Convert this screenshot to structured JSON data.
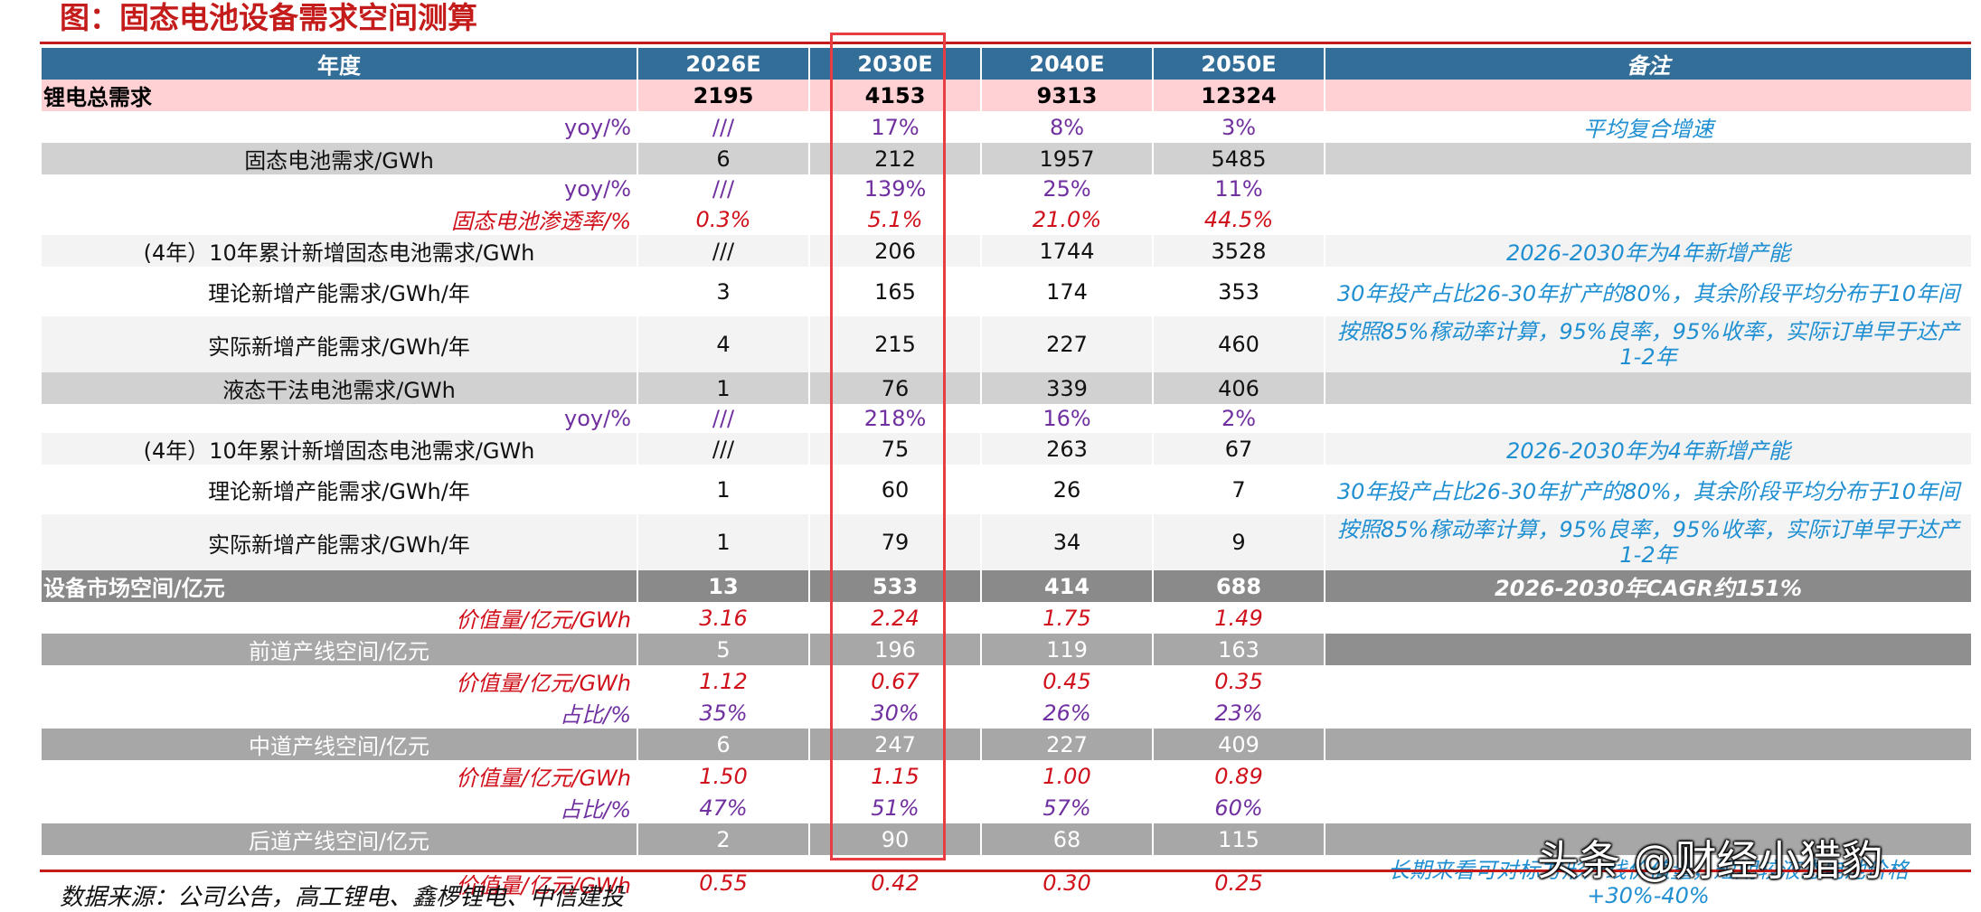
{
  "title": "图：固态电池设备需求空间测算",
  "header": {
    "label": "年度",
    "years": [
      "2026E",
      "2030E",
      "2040E",
      "2050E"
    ],
    "note": "备注"
  },
  "rows": [
    {
      "label": "锂电总需求",
      "values": [
        "2195",
        "4153",
        "9313",
        "12324"
      ],
      "note": ""
    },
    {
      "label": "yoy/%",
      "values": [
        "///",
        "17%",
        "8%",
        "3%"
      ],
      "note": "平均复合增速"
    },
    {
      "label": "固态电池需求/GWh",
      "values": [
        "6",
        "212",
        "1957",
        "5485"
      ],
      "note": ""
    },
    {
      "label": "yoy/%",
      "values": [
        "///",
        "139%",
        "25%",
        "11%"
      ],
      "note": ""
    },
    {
      "label": "固态电池渗透率/%",
      "values": [
        "0.3%",
        "5.1%",
        "21.0%",
        "44.5%"
      ],
      "note": ""
    },
    {
      "label": "(4年）10年累计新增固态电池需求/GWh",
      "values": [
        "///",
        "206",
        "1744",
        "3528"
      ],
      "note": "2026-2030年为4年新增产能"
    },
    {
      "label": "理论新增产能需求/GWh/年",
      "values": [
        "3",
        "165",
        "174",
        "353"
      ],
      "note": "30年投产占比26-30年扩产的80%，其余阶段平均分布于10年间"
    },
    {
      "label": "实际新增产能需求/GWh/年",
      "values": [
        "4",
        "215",
        "227",
        "460"
      ],
      "note": "按照85%稼动率计算，95%良率，95%收率，实际订单早于达产1-2年"
    },
    {
      "label": "液态干法电池需求/GWh",
      "values": [
        "1",
        "76",
        "339",
        "406"
      ],
      "note": ""
    },
    {
      "label": "yoy/%",
      "values": [
        "///",
        "218%",
        "16%",
        "2%"
      ],
      "note": ""
    },
    {
      "label": "(4年）10年累计新增固态电池需求/GWh",
      "values": [
        "///",
        "75",
        "263",
        "67"
      ],
      "note": "2026-2030年为4年新增产能"
    },
    {
      "label": "理论新增产能需求/GWh/年",
      "values": [
        "1",
        "60",
        "26",
        "7"
      ],
      "note": "30年投产占比26-30年扩产的80%，其余阶段平均分布于10年间"
    },
    {
      "label": "实际新增产能需求/GWh/年",
      "values": [
        "1",
        "79",
        "34",
        "9"
      ],
      "note": "按照85%稼动率计算，95%良率，95%收率，实际订单早于达产1-2年"
    },
    {
      "label": "设备市场空间/亿元",
      "values": [
        "13",
        "533",
        "414",
        "688"
      ],
      "note": "2026-2030年CAGR约151%"
    },
    {
      "label": "价值量/亿元/GWh",
      "values": [
        "3.16",
        "2.24",
        "1.75",
        "1.49"
      ],
      "note": ""
    },
    {
      "label": "前道产线空间/亿元",
      "values": [
        "5",
        "196",
        "119",
        "163"
      ],
      "note": ""
    },
    {
      "label": "价值量/亿元/GWh",
      "values": [
        "1.12",
        "0.67",
        "0.45",
        "0.35"
      ],
      "note": ""
    },
    {
      "label": "占比/%",
      "values": [
        "35%",
        "30%",
        "26%",
        "23%"
      ],
      "note": ""
    },
    {
      "label": "中道产线空间/亿元",
      "values": [
        "6",
        "247",
        "227",
        "409"
      ],
      "note": ""
    },
    {
      "label": "价值量/亿元/GWh",
      "values": [
        "1.50",
        "1.15",
        "1.00",
        "0.89"
      ],
      "note": ""
    },
    {
      "label": "占比/%",
      "values": [
        "47%",
        "51%",
        "57%",
        "60%"
      ],
      "note": ""
    },
    {
      "label": "后道产线空间/亿元",
      "values": [
        "2",
        "90",
        "68",
        "115"
      ],
      "note": ""
    },
    {
      "label": "价值量/亿元/GWh",
      "values": [
        "0.55",
        "0.42",
        "0.30",
        "0.25"
      ],
      "note": "长期来看可对标方形产线价值量，短期较液态电池价格+30%-40%"
    }
  ],
  "source": "数据来源：公司公告，高工锂电、鑫椤锂电、中信建投",
  "watermark": "头条 @财经小猎豹",
  "colors": {
    "title_red": "#c41b1b",
    "header_blue": "#336e98",
    "total_pink": "#ffd1d4",
    "note_blue": "#1f8fd1",
    "purple": "#7030a0",
    "red": "#d0111b",
    "highlight_border": "#e83e43"
  }
}
